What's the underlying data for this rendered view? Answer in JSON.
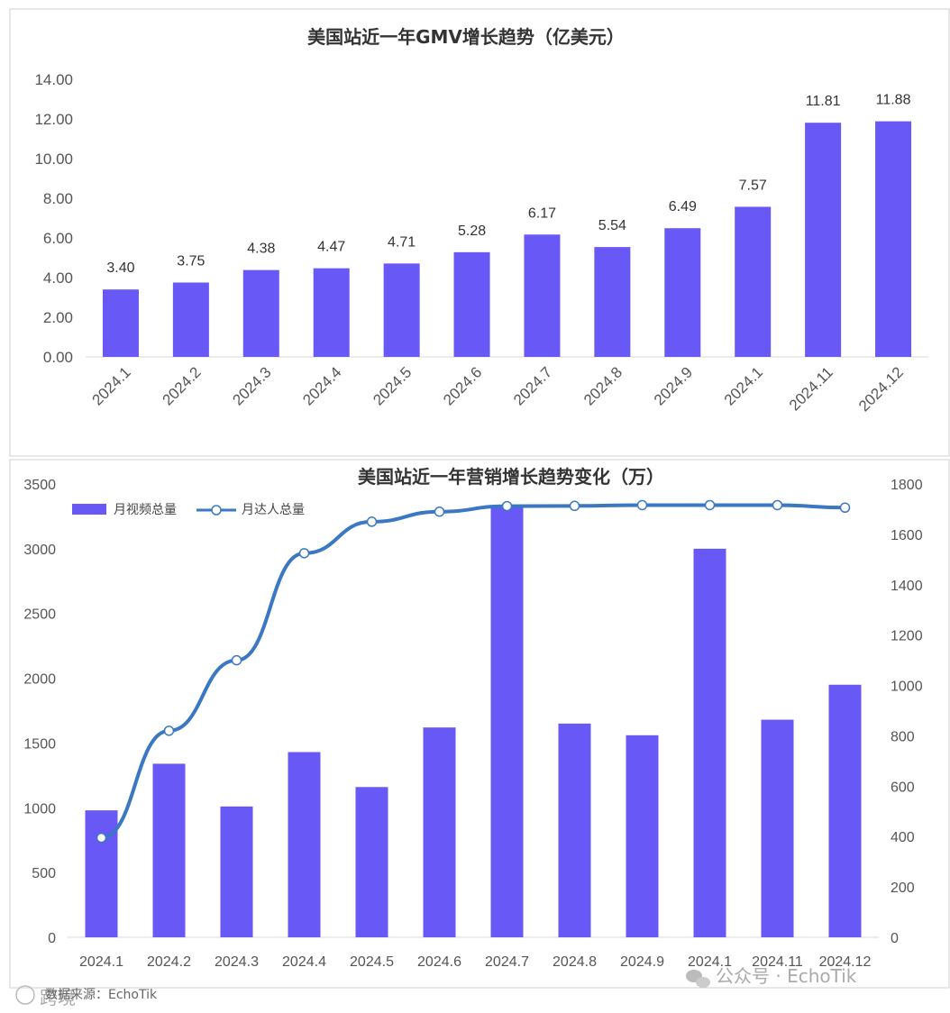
{
  "colors": {
    "bar": "#6858F5",
    "line": "#3A78C4",
    "grid": "#D9D9D9",
    "border": "#D0D0D0"
  },
  "chart_data": [
    {
      "type": "bar",
      "title": "美国站近一年GMV增长趋势（亿美元）",
      "categories": [
        "2024.1",
        "2024.2",
        "2024.3",
        "2024.4",
        "2024.5",
        "2024.6",
        "2024.7",
        "2024.8",
        "2024.9",
        "2024.1",
        "2024.11",
        "2024.12"
      ],
      "values": [
        3.4,
        3.75,
        4.38,
        4.47,
        4.71,
        5.28,
        6.17,
        5.54,
        6.49,
        7.57,
        11.81,
        11.88
      ],
      "data_labels": [
        "3.40",
        "3.75",
        "4.38",
        "4.47",
        "4.71",
        "5.28",
        "6.17",
        "5.54",
        "6.49",
        "7.57",
        "11.81",
        "11.88"
      ],
      "ylim": [
        0,
        14
      ],
      "yticks": [
        "0.00",
        "2.00",
        "4.00",
        "6.00",
        "8.00",
        "10.00",
        "12.00",
        "14.00"
      ],
      "grid": false,
      "legend": "none"
    },
    {
      "type": "bar+line",
      "title": "美国站近一年营销增长趋势变化（万）",
      "categories": [
        "2024.1",
        "2024.2",
        "2024.3",
        "2024.4",
        "2024.5",
        "2024.6",
        "2024.7",
        "2024.8",
        "2024.9",
        "2024.1",
        "2024.11",
        "2024.12"
      ],
      "series": [
        {
          "name": "月视频总量",
          "type": "bar",
          "axis": "left",
          "values": [
            980,
            1340,
            1010,
            1430,
            1160,
            1620,
            3330,
            1650,
            1560,
            3000,
            1680,
            1950
          ]
        },
        {
          "name": "月达人总量",
          "type": "line",
          "axis": "right",
          "values": [
            395,
            820,
            1100,
            1525,
            1650,
            1690,
            1712,
            1713,
            1716,
            1716,
            1716,
            1706
          ]
        }
      ],
      "ylim_left": [
        0,
        3500
      ],
      "yticks_left": [
        "0",
        "500",
        "1000",
        "1500",
        "2000",
        "2500",
        "3000",
        "3500"
      ],
      "ylim_right": [
        0,
        1800
      ],
      "yticks_right": [
        "0",
        "200",
        "400",
        "600",
        "800",
        "1000",
        "1200",
        "1400",
        "1600",
        "1800"
      ],
      "grid": false,
      "legend": "top-left"
    }
  ],
  "footer": {
    "source": "数据来源：EchoTik",
    "watermark": "公众号 · EchoTik",
    "logo_text": "跨境"
  }
}
